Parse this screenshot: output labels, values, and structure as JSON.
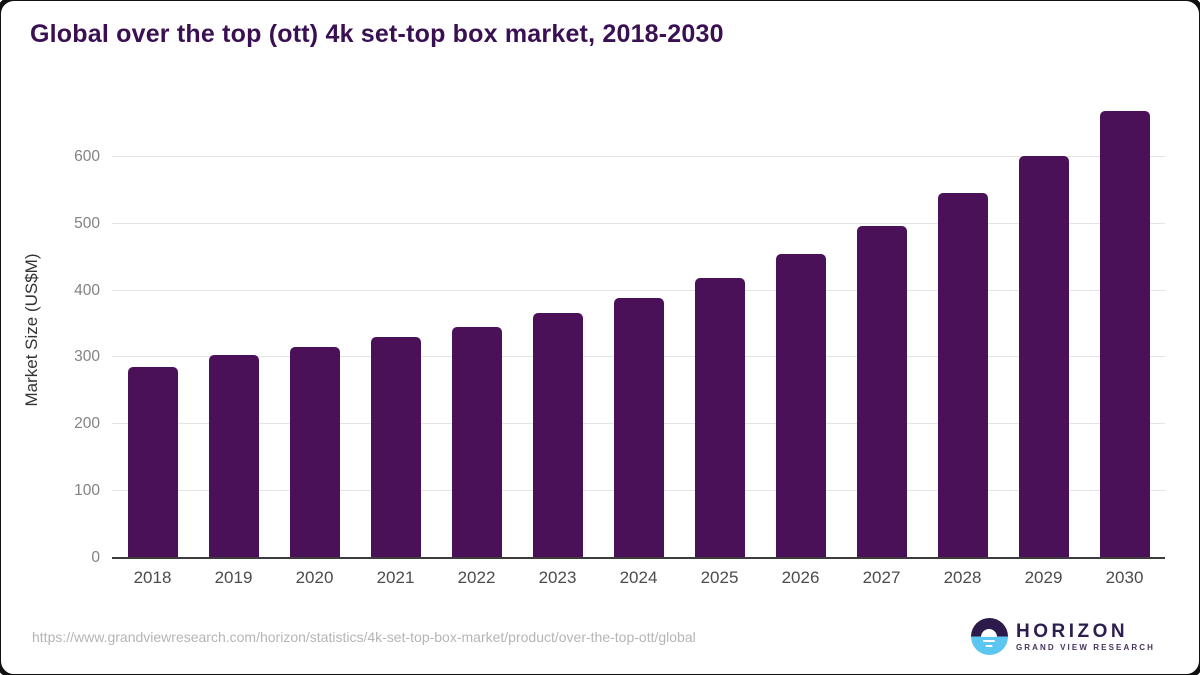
{
  "chart_data": {
    "type": "bar",
    "title": "Global over the top (ott) 4k set-top box market, 2018-2030",
    "categories": [
      "2018",
      "2019",
      "2020",
      "2021",
      "2022",
      "2023",
      "2024",
      "2025",
      "2026",
      "2027",
      "2028",
      "2029",
      "2030"
    ],
    "values": [
      286,
      304,
      316,
      330,
      346,
      366,
      389,
      419,
      455,
      497,
      546,
      601,
      668
    ],
    "xlabel": "",
    "ylabel": "Market Size (US$M)",
    "ylim": [
      0,
      685
    ],
    "yticks": [
      0,
      100,
      200,
      300,
      400,
      500,
      600
    ],
    "grid": true,
    "legend_position": "none",
    "bar_color": "#4a1158"
  },
  "colors": {
    "title_text": "#3a1053",
    "bar": "#4a1158",
    "gridline": "#e4e4e4",
    "axis_line": "#3c3c3c",
    "y_tick_text": "#828282",
    "x_tick_text": "#4c4c4c",
    "url_text": "#b5b5b5",
    "logo_purple": "#2c1a4b",
    "logo_blue": "#5bc6f0"
  },
  "footer": {
    "source_url": "https://www.grandviewresearch.com/horizon/statistics/4k-set-top-box-market/product/over-the-top-ott/global",
    "logo": {
      "wordmark": "HORIZON",
      "subtitle": "GRAND VIEW RESEARCH"
    }
  }
}
